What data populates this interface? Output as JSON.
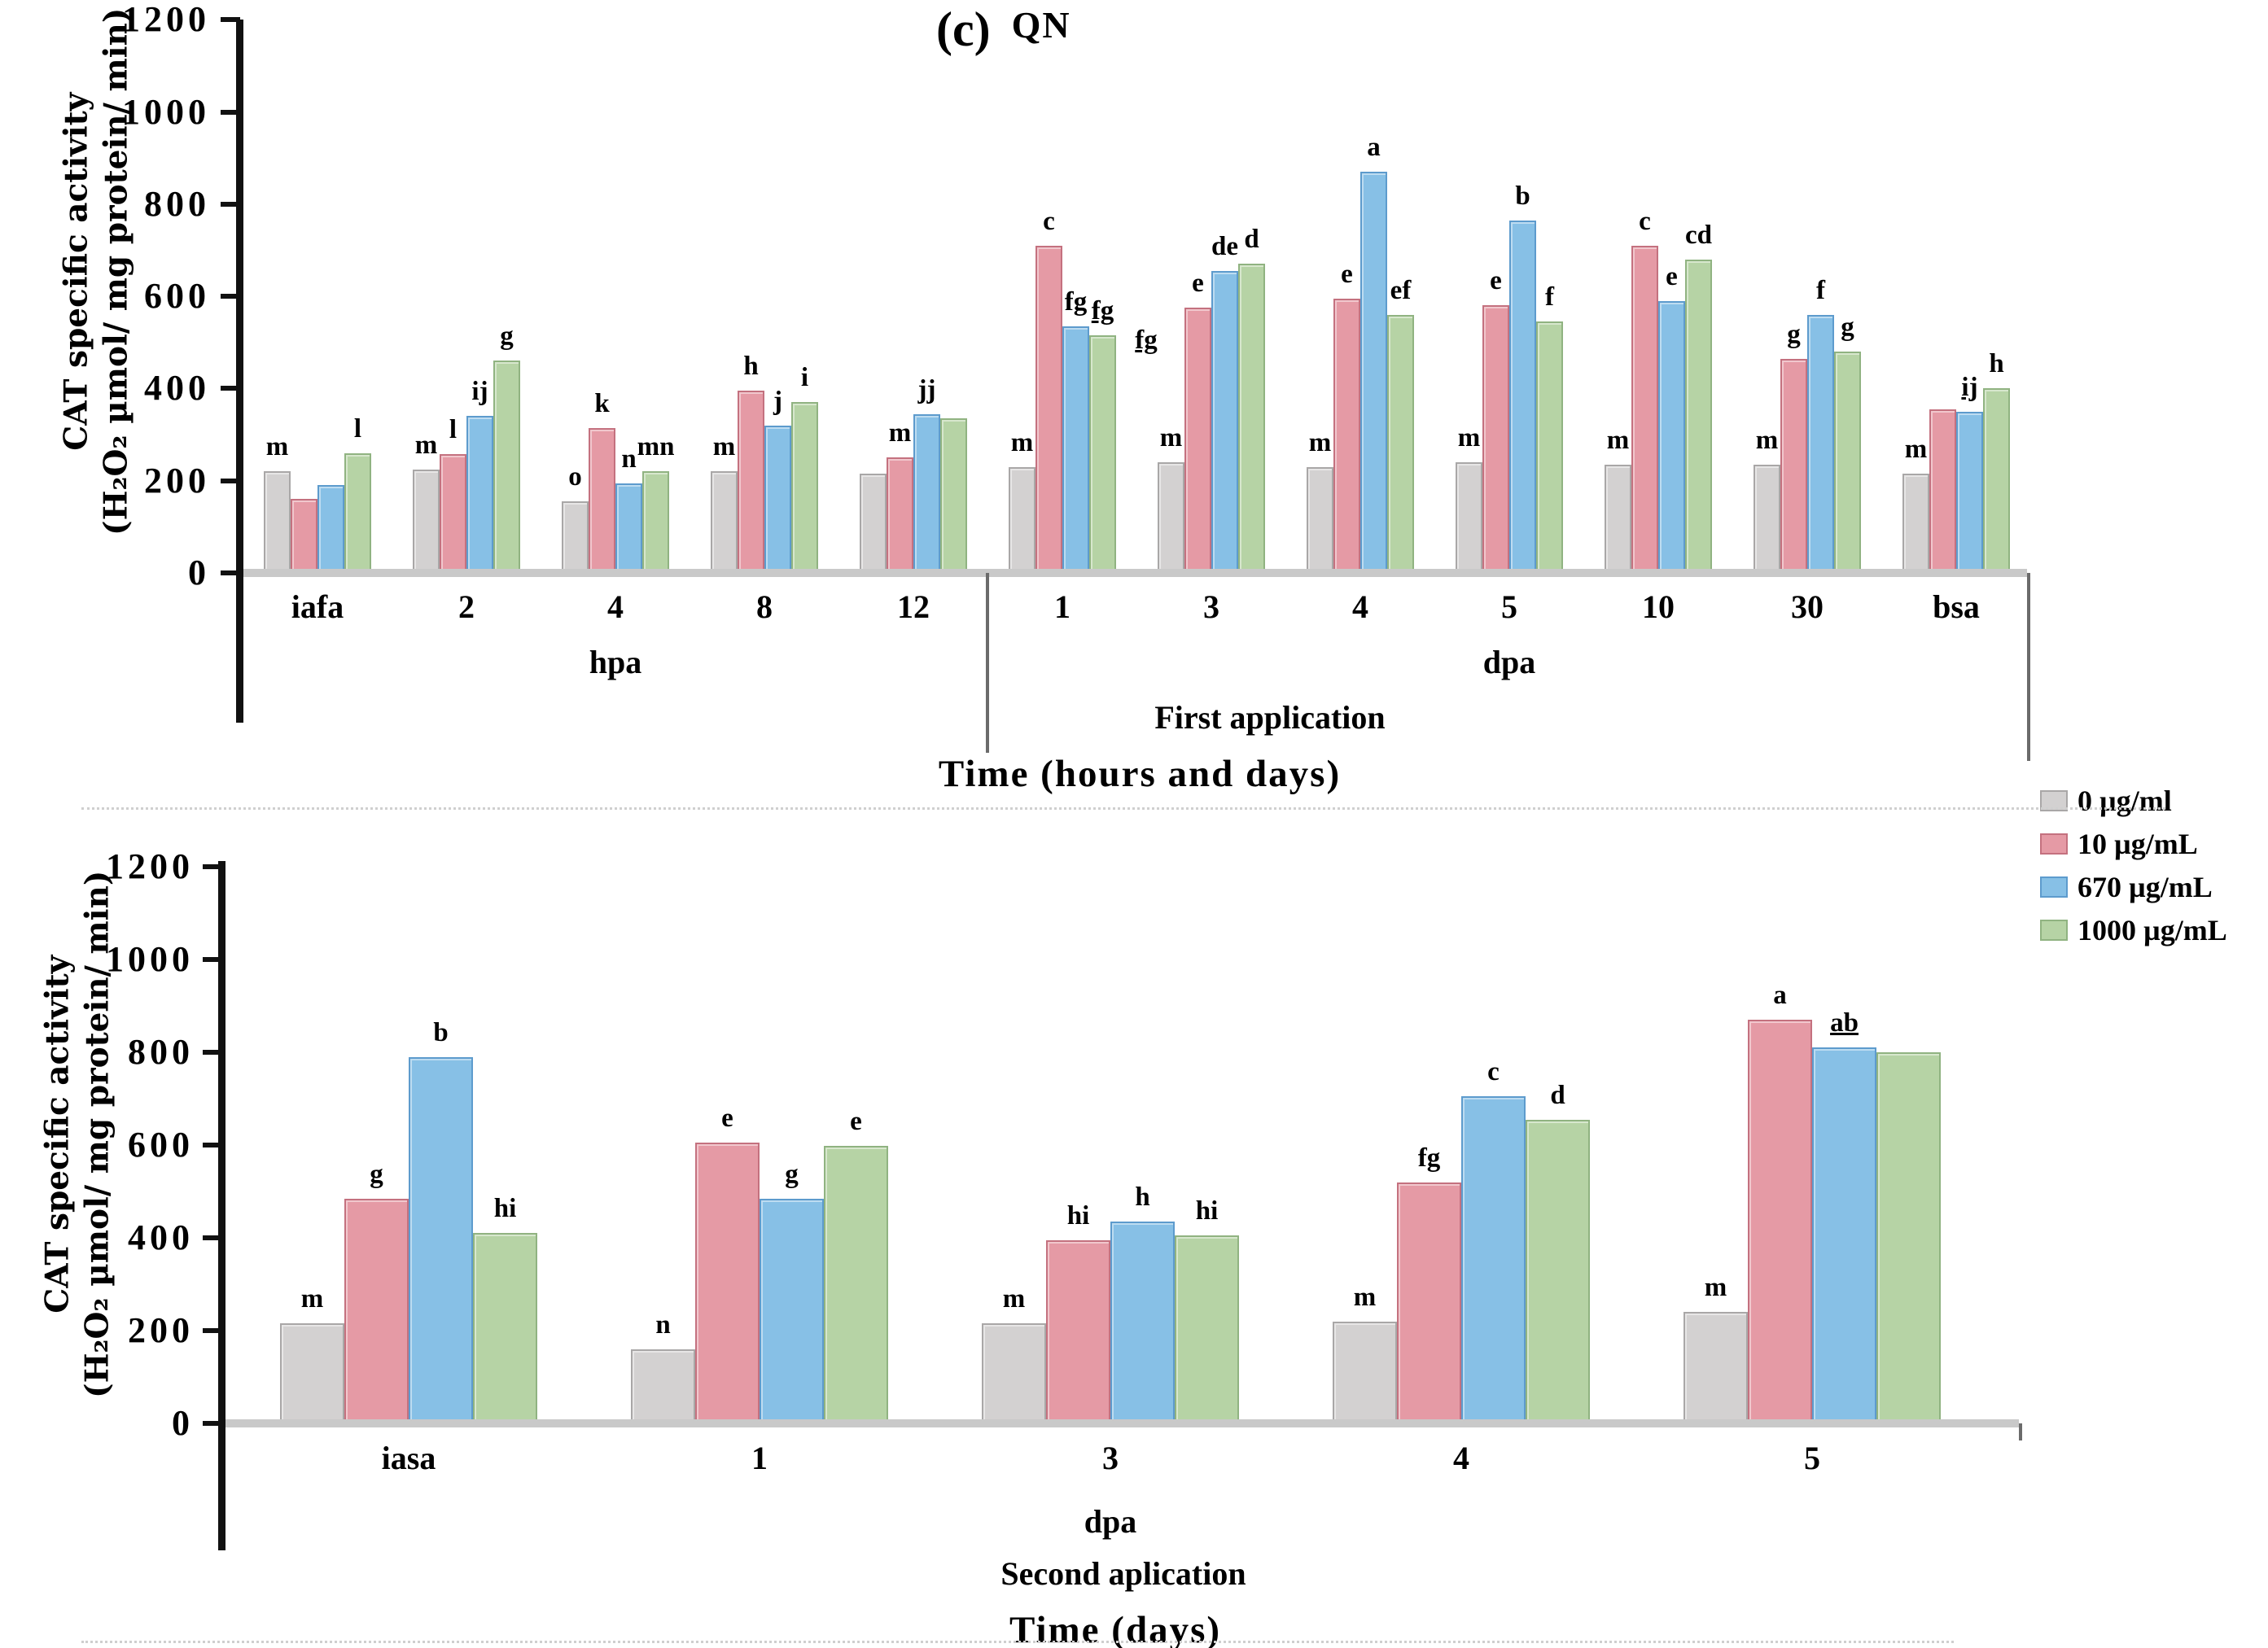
{
  "figure": {
    "panel_label": "(c)",
    "panel_title": "QN"
  },
  "legend": {
    "items": [
      {
        "label": "0 µg/ml",
        "color": "#d3d1d1",
        "border": "#a9a7a7"
      },
      {
        "label": "10 µg/mL",
        "color": "#e59aa5",
        "border": "#c4717f"
      },
      {
        "label": "670 µg/mL",
        "color": "#87c0e6",
        "border": "#5d9bcd"
      },
      {
        "label": "1000 µg/mL",
        "color": "#b6d3a5",
        "border": "#90b381"
      }
    ]
  },
  "chart_data": [
    {
      "id": "first-application",
      "type": "bar",
      "ylabel_line1": "CAT specific activity",
      "ylabel_line2": "(H₂O₂ µmol/ mg protein/ min)",
      "ylim": [
        0,
        1200
      ],
      "yticks": [
        0,
        200,
        400,
        600,
        800,
        1000,
        1200
      ],
      "grid": false,
      "legend_position": "right-middle",
      "series": [
        "0 µg/ml",
        "10 µg/mL",
        "670 µg/mL",
        "1000 µg/mL"
      ],
      "categories": [
        "iafa",
        "2",
        "4",
        "8",
        "12",
        "1",
        "3",
        "4",
        "5",
        "10",
        "30",
        "bsa"
      ],
      "groups": [
        {
          "category": "iafa",
          "values": [
            220,
            160,
            190,
            260
          ],
          "letters": [
            "m",
            null,
            null,
            "l"
          ]
        },
        {
          "category": "2",
          "values": [
            225,
            258,
            340,
            460
          ],
          "letters": [
            "m",
            "l",
            "ij",
            "g"
          ]
        },
        {
          "category": "4",
          "values": [
            155,
            315,
            195,
            220
          ],
          "letters": [
            "o",
            "k",
            "n",
            "mn"
          ]
        },
        {
          "category": "8",
          "values": [
            220,
            395,
            320,
            370
          ],
          "letters": [
            "m",
            "h",
            "j",
            "i"
          ]
        },
        {
          "category": "12",
          "values": [
            215,
            250,
            345,
            335
          ],
          "letters": [
            null,
            "m",
            "jj",
            null
          ]
        },
        {
          "category": "1",
          "values": [
            230,
            710,
            535,
            515
          ],
          "letters": [
            "m",
            "c",
            "fg",
            {
              "t": "fg",
              "u": true
            }
          ]
        },
        {
          "category": "3",
          "values": [
            240,
            575,
            655,
            670
          ],
          "letters": [
            "m",
            "e",
            "de",
            "d"
          ]
        },
        {
          "category": "4",
          "values": [
            230,
            595,
            870,
            560
          ],
          "letters": [
            "m",
            "e",
            "a",
            "ef"
          ]
        },
        {
          "category": "5",
          "values": [
            240,
            580,
            765,
            545
          ],
          "letters": [
            "m",
            "e",
            "b",
            "f"
          ]
        },
        {
          "category": "10",
          "values": [
            235,
            710,
            590,
            680
          ],
          "letters": [
            "m",
            "c",
            "e",
            "cd"
          ]
        },
        {
          "category": "30",
          "values": [
            235,
            465,
            560,
            480
          ],
          "letters": [
            "m",
            "g",
            "f",
            "g"
          ]
        },
        {
          "category": "bsa",
          "values": [
            215,
            355,
            350,
            400
          ],
          "letters": [
            "m",
            null,
            {
              "t": "ij",
              "u": true
            },
            "h"
          ]
        }
      ],
      "axis_sections": [
        {
          "label": "hpa",
          "categories": [
            "iafa",
            "2",
            "4",
            "8",
            "12"
          ]
        },
        {
          "label": "dpa",
          "categories": [
            "1",
            "3",
            "4",
            "5",
            "10",
            "30",
            "bsa"
          ]
        }
      ],
      "caption": "First application",
      "xlabel": "Time (hours and days)",
      "extra_annotations": [
        {
          "text": "fg",
          "underline": true
        }
      ]
    },
    {
      "id": "second-application",
      "type": "bar",
      "ylabel_line1": "CAT specific activity",
      "ylabel_line2": "(H₂O₂ µmol/ mg protein/ min)",
      "ylim": [
        0,
        1200
      ],
      "yticks": [
        0,
        200,
        400,
        600,
        800,
        1000,
        1200
      ],
      "grid": false,
      "series": [
        "0 µg/ml",
        "10 µg/mL",
        "670 µg/mL",
        "1000 µg/mL"
      ],
      "categories": [
        "iasa",
        "1",
        "3",
        "4",
        "5"
      ],
      "groups": [
        {
          "category": "iasa",
          "values": [
            215,
            485,
            790,
            410
          ],
          "letters": [
            "m",
            "g",
            "b",
            "hi"
          ]
        },
        {
          "category": "1",
          "values": [
            160,
            605,
            485,
            598
          ],
          "letters": [
            "n",
            "e",
            "g",
            "e"
          ]
        },
        {
          "category": "3",
          "values": [
            215,
            395,
            435,
            405
          ],
          "letters": [
            "m",
            "hi",
            "h",
            "hi"
          ]
        },
        {
          "category": "4",
          "values": [
            220,
            520,
            705,
            655
          ],
          "letters": [
            "m",
            "fg",
            "c",
            "d"
          ]
        },
        {
          "category": "5",
          "values": [
            240,
            870,
            810,
            800
          ],
          "letters": [
            "m",
            "a",
            {
              "t": "ab",
              "u": true
            },
            null
          ]
        }
      ],
      "axis_sections": [
        {
          "label": "dpa",
          "categories": [
            "iasa",
            "1",
            "3",
            "4",
            "5"
          ]
        }
      ],
      "caption": "Second aplication",
      "xlabel": "Time (days)",
      "extra_annotations": []
    }
  ]
}
